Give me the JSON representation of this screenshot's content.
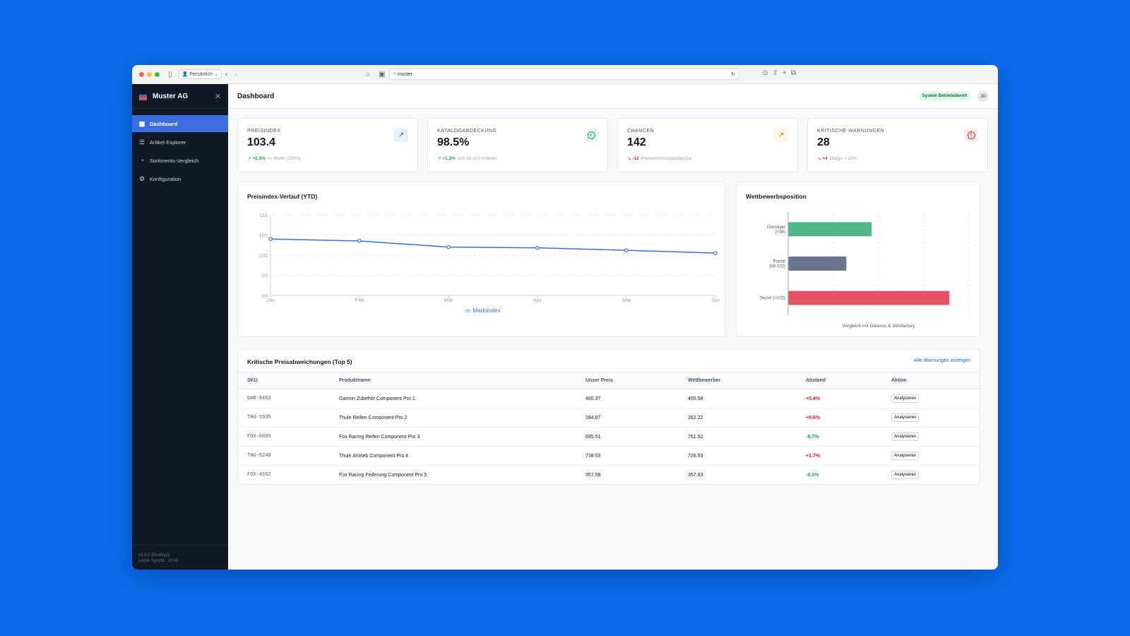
{
  "browser": {
    "profile": "Persönlich",
    "url": "muster"
  },
  "sidebar": {
    "brand": "Muster AG",
    "items": [
      {
        "label": "Dashboard",
        "icon": "grid-icon"
      },
      {
        "label": "Artikel-Explorer",
        "icon": "database-icon"
      },
      {
        "label": "Sortiments-Vergleich",
        "icon": "pie-icon"
      },
      {
        "label": "Konfiguration",
        "icon": "gear-icon"
      }
    ],
    "version": "v2.4.2 (Prototyp)",
    "sync": "Letzte Synchr.: 10:42"
  },
  "header": {
    "title": "Dashboard",
    "status": "System Betriebsbereit",
    "user": "JD"
  },
  "kpis": [
    {
      "label": "PREISINDEX",
      "value": "103.4",
      "delta": "+0.5%",
      "note": "vs Markt (100.0)",
      "color": "#16a34a",
      "icon": "trend-up-icon",
      "iconColor": "#2563eb",
      "iconBg": "#eaf1fe"
    },
    {
      "label": "KATALOGABDECKUNG",
      "value": "98.5%",
      "delta": "+1.2%",
      "note": "von 36,420 Artikeln",
      "color": "#16a34a",
      "icon": "check-circle-icon",
      "iconColor": "#16a34a",
      "iconBg": "#eaf7ef"
    },
    {
      "label": "CHANCEN",
      "value": "142",
      "delta": "-12",
      "note": "Preiserhöhungspotenzial",
      "color": "#dc2626",
      "icon": "trend-up-icon",
      "iconColor": "#d97706",
      "iconBg": "#fef6e7"
    },
    {
      "label": "KRITISCHE WARNUNGEN",
      "value": "28",
      "delta": "+4",
      "note": "Marge < 15%",
      "color": "#dc2626",
      "icon": "alert-circle-icon",
      "iconColor": "#dc2626",
      "iconBg": "#fdecec"
    }
  ],
  "chart_data": [
    {
      "type": "line",
      "title": "Preisindex-Verlauf (YTD)",
      "categories": [
        "Jan",
        "Feb",
        "Mär",
        "Apr",
        "Mai",
        "Jun"
      ],
      "series": [
        {
          "name": "Marktindex",
          "values": [
            104.0,
            103.5,
            102.0,
            101.8,
            101.2,
            100.5
          ],
          "color": "#3b6fe0"
        }
      ],
      "ylim": [
        90,
        110
      ],
      "yticks": [
        90,
        95,
        100,
        105,
        110
      ],
      "grid": true,
      "legend": "bottom"
    },
    {
      "type": "bar",
      "orientation": "horizontal",
      "title": "Wettbewerbsposition",
      "categories": [
        "Günstiger (<98)",
        "Parität (98-102)",
        "Teurer (>102)"
      ],
      "values": [
        46,
        32,
        89
      ],
      "colors": [
        "#52b788",
        "#6b7590",
        "#e35464"
      ],
      "xlim": [
        0,
        100
      ],
      "xlabel": "Vergleich mit Galaxus & Velofactory",
      "grid": true
    }
  ],
  "table": {
    "title": "Kritische Preisabweichungen (Top 5)",
    "link": "Alle Warnungen anzeigen",
    "columns": [
      "SKU",
      "Produktname",
      "Unser Preis",
      "Wettbewerber",
      "Abstand",
      "Aktion"
    ],
    "rows": [
      {
        "sku": "GAR-9483",
        "name": "Garmin Zubehör Component Pro 1",
        "price": "480.37",
        "comp": "455.58",
        "diff": "+5.4%",
        "action": "Analysieren"
      },
      {
        "sku": "THU-1935",
        "name": "Thule Reifen Component Pro 2",
        "price": "284.87",
        "comp": "262.22",
        "diff": "+8.6%",
        "action": "Analysieren"
      },
      {
        "sku": "FOX-6895",
        "name": "Fox Racing Reifen Component Pro 3",
        "price": "695.51",
        "comp": "761.52",
        "diff": "-8.7%",
        "action": "Analysieren"
      },
      {
        "sku": "THU-5240",
        "name": "Thule Antrieb Component Pro 4",
        "price": "738.53",
        "comp": "726.53",
        "diff": "+1.7%",
        "action": "Analysieren"
      },
      {
        "sku": "FOX-4652",
        "name": "Fox Racing Federung Component Pro 5",
        "price": "357.58",
        "comp": "357.93",
        "diff": "-0.1%",
        "action": "Analysieren"
      }
    ]
  }
}
